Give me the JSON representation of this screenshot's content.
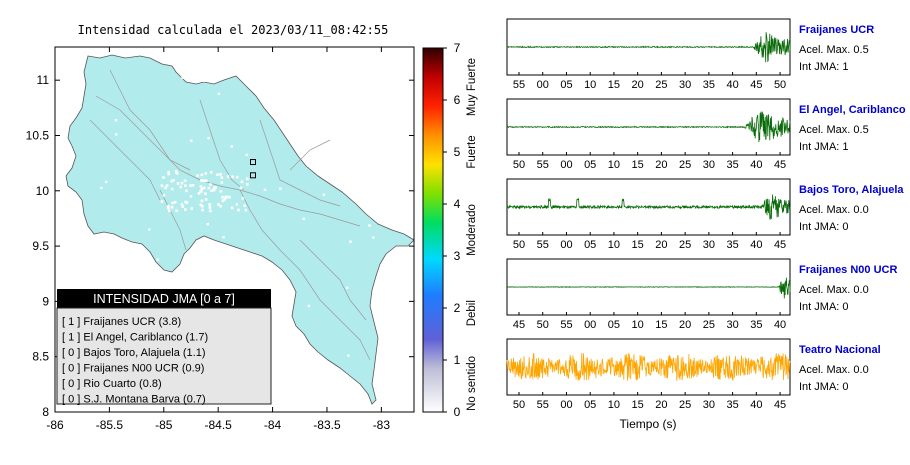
{
  "map": {
    "title": "Intensidad calculada el 2023/03/11_08:42:55",
    "lon_ticks": [
      "-86",
      "-85.5",
      "-85",
      "-84.5",
      "-84",
      "-83.5",
      "-83"
    ],
    "lat_ticks": [
      "8",
      "8.5",
      "9",
      "9.5",
      "10",
      "10.5",
      "11"
    ],
    "xlim": [
      -86,
      -82.7
    ],
    "ylim": [
      8,
      11.3
    ],
    "land_color": "#b2ebec"
  },
  "colorbar": {
    "ticks": [
      "0",
      "1",
      "2",
      "3",
      "4",
      "5",
      "6",
      "7"
    ],
    "labels": [
      "No sentido",
      "Debil",
      "Moderado",
      "Fuerte",
      "Muy Fuerte"
    ],
    "range": [
      0,
      7
    ]
  },
  "legend": {
    "title": "INTENSIDAD JMA [0 a 7]",
    "items": [
      "[ 1 ]  Fraijanes UCR (3.8)",
      "[ 1 ]  El Angel, Cariblanco (1.7)",
      "[ 0 ]  Bajos Toro, Alajuela (1.1)",
      "[ 0 ]  Fraijanes N00 UCR (0.9)",
      "[ 0 ]  Rio Cuarto (0.8)",
      "[ 0 ]  S.J. Montana Barva (0.7)"
    ]
  },
  "stations_marked": [
    {
      "lon": -84.18,
      "lat": 10.26
    },
    {
      "lon": -84.18,
      "lat": 10.14
    }
  ],
  "seis": {
    "xlabel": "Tiempo (s)",
    "colors": {
      "green": "#0a6b0a",
      "orange": "#ffa500",
      "station_name": "#0000cc"
    },
    "panels": [
      {
        "name": "Fraijanes UCR",
        "acel": "Acel. Max. 0.5",
        "jma": "Int JMA: 1",
        "ticks": [
          "55",
          "00",
          "05",
          "10",
          "15",
          "20",
          "25",
          "30",
          "35",
          "40",
          "45",
          "50"
        ],
        "event_start": 0.87,
        "amplitude": 0.9,
        "noise": 0.02,
        "color": "green"
      },
      {
        "name": "El Angel, Cariblanco",
        "acel": "Acel. Max. 0.5",
        "jma": "Int JMA: 1",
        "ticks": [
          "50",
          "55",
          "00",
          "05",
          "10",
          "15",
          "20",
          "25",
          "30",
          "35",
          "40",
          "45"
        ],
        "event_start": 0.84,
        "amplitude": 0.95,
        "noise": 0.02,
        "color": "green"
      },
      {
        "name": "Bajos Toro, Alajuela",
        "acel": "Acel. Max. 0.0",
        "jma": "Int JMA: 0",
        "ticks": [
          "50",
          "55",
          "00",
          "05",
          "10",
          "15",
          "20",
          "25",
          "30",
          "35",
          "40",
          "45"
        ],
        "event_start": 0.9,
        "amplitude": 0.7,
        "noise": 0.05,
        "color": "green"
      },
      {
        "name": "Fraijanes N00 UCR",
        "acel": "Acel. Max. 0.0",
        "jma": "Int JMA: 0",
        "ticks": [
          "45",
          "50",
          "55",
          "00",
          "05",
          "10",
          "15",
          "20",
          "25",
          "30",
          "35",
          "40"
        ],
        "event_start": 0.96,
        "amplitude": 0.8,
        "noise": 0.01,
        "color": "green"
      },
      {
        "name": "Teatro Nacional",
        "acel": "Acel. Max. 0.0",
        "jma": "Int JMA: 0",
        "ticks": [
          "50",
          "55",
          "00",
          "05",
          "10",
          "15",
          "20",
          "25",
          "30",
          "35",
          "40",
          "45"
        ],
        "event_start": 2.0,
        "amplitude": 0.85,
        "noise": 0.45,
        "color": "orange"
      }
    ]
  },
  "chart_data": [
    {
      "type": "heatmap",
      "title": "Intensidad calculada el 2023/03/11_08:42:55",
      "xlim": [
        -86,
        -82.7
      ],
      "ylim": [
        8,
        11.3
      ],
      "x_ticks": [
        -86,
        -85.5,
        -85,
        -84.5,
        -84,
        -83.5,
        -83
      ],
      "y_ticks": [
        8,
        8.5,
        9,
        9.5,
        10,
        10.5,
        11
      ],
      "colorbar_range": [
        0,
        7
      ],
      "colorbar_labels": [
        "No sentido",
        "Debil",
        "Moderado",
        "Fuerte",
        "Muy Fuerte"
      ],
      "legend": [
        "Fraijanes UCR (3.8)",
        "El Angel, Cariblanco (1.7)",
        "Bajos Toro, Alajuela (1.1)",
        "Fraijanes N00 UCR (0.9)",
        "Rio Cuarto (0.8)",
        "S.J. Montana Barva (0.7)"
      ]
    },
    {
      "type": "line",
      "xlabel": "Tiempo (s)",
      "series": [
        {
          "name": "Fraijanes UCR"
        },
        {
          "name": "El Angel, Cariblanco"
        },
        {
          "name": "Bajos Toro, Alajuela"
        },
        {
          "name": "Fraijanes N00 UCR"
        },
        {
          "name": "Teatro Nacional"
        }
      ]
    }
  ]
}
